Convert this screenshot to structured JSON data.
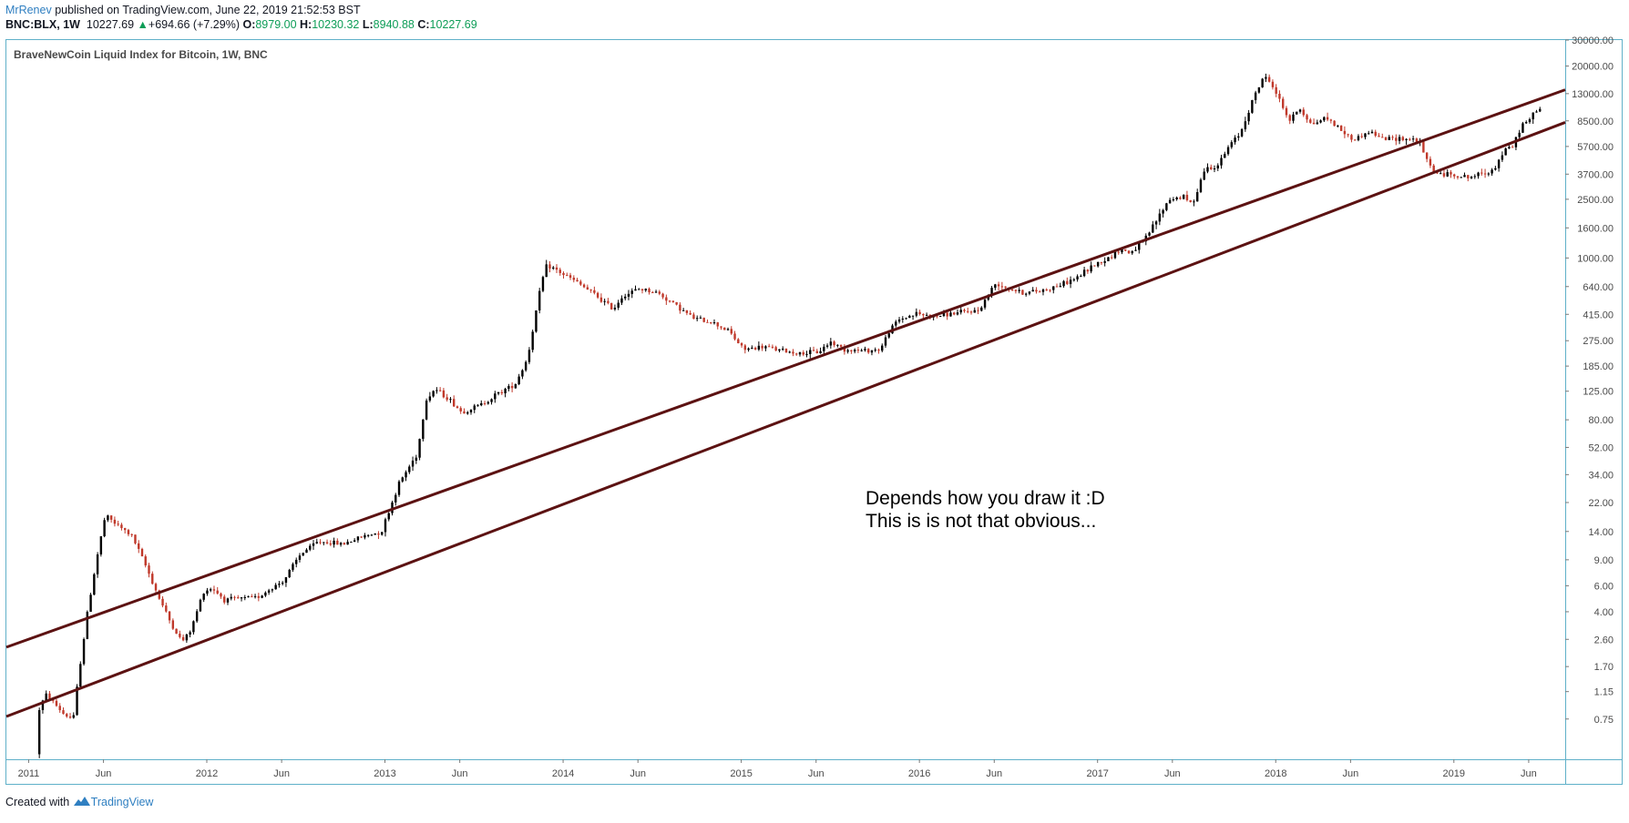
{
  "header": {
    "author": "MrRenev",
    "published_text": "published on TradingView.com, June 22, 2019 21:52:53 BST"
  },
  "ohlc": {
    "symbol": "BNC:BLX, 1W",
    "last": "10227.69",
    "change_arrow": "▲",
    "change": "+694.66 (+7.29%)",
    "o_label": "O:",
    "o": "8979.00",
    "h_label": "H:",
    "h": "10230.32",
    "l_label": "L:",
    "l": "8940.88",
    "c_label": "C:",
    "c": "10227.69"
  },
  "footer": {
    "created_with": "Created with",
    "brand": "TradingView"
  },
  "colors": {
    "up": "#000000",
    "down": "#c0392b",
    "trendline": "#5c1212",
    "frame": "#5fb0c9",
    "axis_text": "#4a4a4a"
  },
  "chart_data": {
    "type": "candlestick",
    "title": "BraveNewCoin Liquid Index for Bitcoin, 1W, BNC",
    "y_scale": "log",
    "ylim": [
      0.4,
      30000
    ],
    "y_ticks": [
      "30000.00",
      "20000.00",
      "13000.00",
      "8500.00",
      "5700.00",
      "3700.00",
      "2500.00",
      "1600.00",
      "1000.00",
      "640.00",
      "415.00",
      "275.00",
      "185.00",
      "125.00",
      "80.00",
      "52.00",
      "34.00",
      "22.00",
      "14.00",
      "9.00",
      "6.00",
      "4.00",
      "2.60",
      "1.70",
      "1.15",
      "0.75"
    ],
    "x_range": [
      2010.875,
      2019.625
    ],
    "x_ticks": [
      {
        "t": 2011.0,
        "label": "2011"
      },
      {
        "t": 2011.42,
        "label": "Jun"
      },
      {
        "t": 2012.0,
        "label": "2012"
      },
      {
        "t": 2012.42,
        "label": "Jun"
      },
      {
        "t": 2013.0,
        "label": "2013"
      },
      {
        "t": 2013.42,
        "label": "Jun"
      },
      {
        "t": 2014.0,
        "label": "2014"
      },
      {
        "t": 2014.42,
        "label": "Jun"
      },
      {
        "t": 2015.0,
        "label": "2015"
      },
      {
        "t": 2015.42,
        "label": "Jun"
      },
      {
        "t": 2016.0,
        "label": "2016"
      },
      {
        "t": 2016.42,
        "label": "Jun"
      },
      {
        "t": 2017.0,
        "label": "2017"
      },
      {
        "t": 2017.42,
        "label": "Jun"
      },
      {
        "t": 2018.0,
        "label": "2018"
      },
      {
        "t": 2018.42,
        "label": "Jun"
      },
      {
        "t": 2019.0,
        "label": "2019"
      },
      {
        "t": 2019.42,
        "label": "Jun"
      }
    ],
    "price_path": [
      [
        2011.05,
        0.3
      ],
      [
        2011.08,
        0.9
      ],
      [
        2011.12,
        1.1
      ],
      [
        2011.22,
        0.8
      ],
      [
        2011.27,
        0.75
      ],
      [
        2011.3,
        1.5
      ],
      [
        2011.35,
        4
      ],
      [
        2011.4,
        9
      ],
      [
        2011.45,
        18
      ],
      [
        2011.5,
        16
      ],
      [
        2011.6,
        13
      ],
      [
        2011.68,
        8
      ],
      [
        2011.75,
        5
      ],
      [
        2011.82,
        3.3
      ],
      [
        2011.88,
        2.5
      ],
      [
        2011.93,
        3
      ],
      [
        2012.0,
        5.5
      ],
      [
        2012.05,
        5.8
      ],
      [
        2012.12,
        4.8
      ],
      [
        2012.3,
        5.0
      ],
      [
        2012.45,
        6.5
      ],
      [
        2012.55,
        10
      ],
      [
        2012.65,
        12
      ],
      [
        2012.78,
        11.5
      ],
      [
        2012.9,
        13
      ],
      [
        2013.0,
        14
      ],
      [
        2013.1,
        30
      ],
      [
        2013.2,
        47
      ],
      [
        2013.25,
        110
      ],
      [
        2013.3,
        130
      ],
      [
        2013.38,
        110
      ],
      [
        2013.45,
        90
      ],
      [
        2013.55,
        100
      ],
      [
        2013.65,
        120
      ],
      [
        2013.75,
        140
      ],
      [
        2013.82,
        210
      ],
      [
        2013.87,
        450
      ],
      [
        2013.9,
        700
      ],
      [
        2013.93,
        900
      ],
      [
        2014.0,
        800
      ],
      [
        2014.1,
        680
      ],
      [
        2014.2,
        560
      ],
      [
        2014.3,
        450
      ],
      [
        2014.35,
        550
      ],
      [
        2014.45,
        620
      ],
      [
        2014.55,
        580
      ],
      [
        2014.65,
        480
      ],
      [
        2014.75,
        390
      ],
      [
        2014.85,
        370
      ],
      [
        2014.95,
        320
      ],
      [
        2015.03,
        240
      ],
      [
        2015.15,
        250
      ],
      [
        2015.25,
        235
      ],
      [
        2015.35,
        225
      ],
      [
        2015.45,
        230
      ],
      [
        2015.52,
        270
      ],
      [
        2015.6,
        240
      ],
      [
        2015.7,
        235
      ],
      [
        2015.8,
        240
      ],
      [
        2015.85,
        320
      ],
      [
        2015.9,
        380
      ],
      [
        2016.0,
        420
      ],
      [
        2016.1,
        400
      ],
      [
        2016.2,
        420
      ],
      [
        2016.35,
        440
      ],
      [
        2016.45,
        680
      ],
      [
        2016.5,
        640
      ],
      [
        2016.6,
        580
      ],
      [
        2016.7,
        600
      ],
      [
        2016.8,
        650
      ],
      [
        2016.9,
        730
      ],
      [
        2017.0,
        900
      ],
      [
        2017.08,
        1000
      ],
      [
        2017.15,
        1150
      ],
      [
        2017.2,
        1080
      ],
      [
        2017.28,
        1300
      ],
      [
        2017.35,
        1800
      ],
      [
        2017.42,
        2500
      ],
      [
        2017.5,
        2600
      ],
      [
        2017.55,
        2300
      ],
      [
        2017.62,
        4000
      ],
      [
        2017.7,
        4300
      ],
      [
        2017.76,
        5800
      ],
      [
        2017.82,
        7000
      ],
      [
        2017.88,
        11000
      ],
      [
        2017.95,
        17000
      ],
      [
        2018.0,
        15000
      ],
      [
        2018.05,
        11000
      ],
      [
        2018.1,
        8500
      ],
      [
        2018.15,
        10500
      ],
      [
        2018.22,
        8000
      ],
      [
        2018.3,
        9000
      ],
      [
        2018.38,
        7500
      ],
      [
        2018.45,
        6300
      ],
      [
        2018.55,
        7200
      ],
      [
        2018.62,
        6400
      ],
      [
        2018.72,
        6500
      ],
      [
        2018.82,
        6300
      ],
      [
        2018.87,
        4500
      ],
      [
        2018.92,
        3700
      ],
      [
        2019.0,
        3700
      ],
      [
        2019.1,
        3500
      ],
      [
        2019.2,
        3800
      ],
      [
        2019.25,
        4100
      ],
      [
        2019.3,
        5300
      ],
      [
        2019.35,
        5700
      ],
      [
        2019.4,
        8000
      ],
      [
        2019.45,
        8700
      ],
      [
        2019.48,
        10227.69
      ]
    ],
    "trendlines": [
      {
        "from": [
          2010.875,
          2.3
        ],
        "to": [
          2019.625,
          13800
        ]
      },
      {
        "from": [
          2010.875,
          0.78
        ],
        "to": [
          2019.625,
          8300
        ]
      }
    ],
    "annotation": [
      "Depends how you draw it :D",
      "This is is not that obvious..."
    ]
  }
}
